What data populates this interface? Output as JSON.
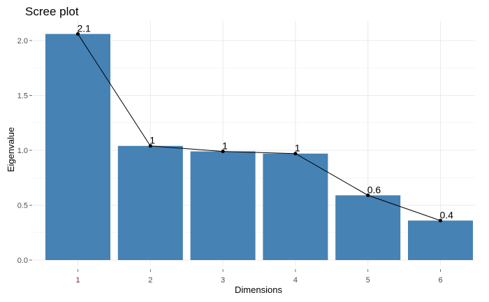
{
  "chart_data": {
    "type": "bar",
    "title": "Scree plot",
    "xlabel": "Dimensions",
    "ylabel": "Eigenvalue",
    "categories": [
      "1",
      "2",
      "3",
      "4",
      "5",
      "6"
    ],
    "values": [
      2.06,
      1.04,
      0.99,
      0.97,
      0.59,
      0.36
    ],
    "data_labels": [
      "2.1",
      "1",
      "1",
      "1",
      "0.6",
      "0.4"
    ],
    "y_ticks": [
      0.0,
      0.5,
      1.0,
      1.5,
      2.0
    ],
    "y_tick_labels": [
      "0.0",
      "0.5",
      "1.0",
      "1.5",
      "2.0"
    ],
    "ylim": [
      0,
      2.1
    ],
    "overlay_line": true,
    "grid": true,
    "legend": "none",
    "colors": {
      "bar": "#4682B4",
      "line": "#000000",
      "grid": "#ebebeb",
      "x_tick": "#7a2b2b"
    }
  }
}
